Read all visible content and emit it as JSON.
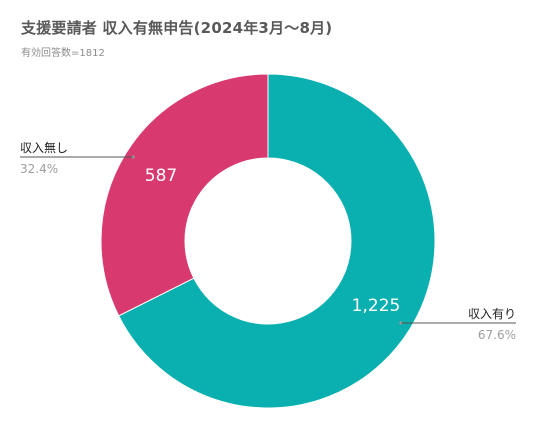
{
  "header": {
    "title": "支援要請者 収入有無申告(2024年3月～8月)",
    "subtitle": "有効回答数=1812"
  },
  "chart_data": {
    "type": "pie",
    "donut": true,
    "title": "支援要請者 収入有無申告(2024年3月～8月)",
    "subtitle": "有効回答数=1812",
    "total": 1812,
    "slices": [
      {
        "label": "収入有り",
        "value": 1225,
        "value_label": "1,225",
        "percent_label": "67.6%",
        "color": "#0aafb0"
      },
      {
        "label": "収入無し",
        "value": 587,
        "value_label": "587",
        "percent_label": "32.4%",
        "color": "#d8396f"
      }
    ],
    "legend": "none",
    "label_style": "callout"
  },
  "colors": {
    "background": "#ffffff",
    "title": "#595959",
    "subtitle": "#8c8c8c",
    "callout_label": "#222222",
    "callout_percent": "#9e9e9e",
    "inner_value": "#ffffff"
  }
}
